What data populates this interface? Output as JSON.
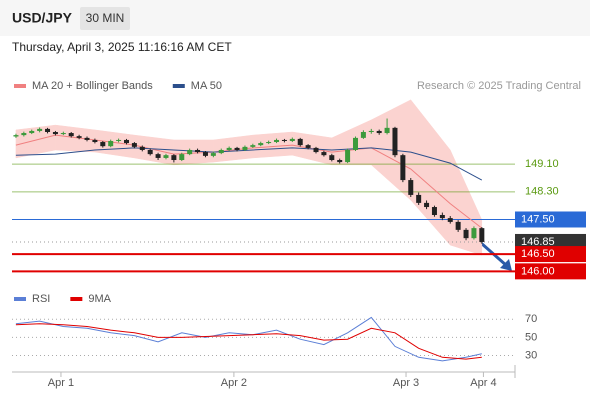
{
  "header": {
    "symbol": "USD/JPY",
    "interval": "30 MIN",
    "timestamp": "Thursday, April 3, 2025 11:16:16 AM CET"
  },
  "chart_data": [
    {
      "type": "candlestick",
      "credit": "Research © 2025 Trading Central",
      "x": [
        0,
        1,
        2,
        3,
        4,
        5,
        6,
        7,
        8,
        9,
        10,
        11,
        12,
        13,
        14,
        15,
        16,
        17,
        18,
        19,
        20,
        21,
        22,
        23,
        24,
        25,
        26,
        27,
        28,
        29,
        30,
        31,
        32,
        33,
        34,
        35,
        36,
        37,
        38,
        39,
        40,
        41,
        42,
        43,
        44,
        45,
        46,
        47,
        48,
        49,
        50,
        51,
        52,
        53,
        54,
        55,
        56,
        57,
        58,
        59
      ],
      "open": [
        149.9,
        149.94,
        150.0,
        150.06,
        150.12,
        150.03,
        149.97,
        150.0,
        149.91,
        149.86,
        149.8,
        149.74,
        149.62,
        149.77,
        149.8,
        149.71,
        149.6,
        149.51,
        149.39,
        149.28,
        149.36,
        149.22,
        149.39,
        149.51,
        149.45,
        149.34,
        149.42,
        149.51,
        149.57,
        149.51,
        149.6,
        149.65,
        149.71,
        149.74,
        149.8,
        149.77,
        149.83,
        149.65,
        149.57,
        149.45,
        149.36,
        149.22,
        149.16,
        149.51,
        149.86,
        150.03,
        150.06,
        150.0,
        150.15,
        149.36,
        148.64,
        148.21,
        147.98,
        147.86,
        147.63,
        147.54,
        147.43,
        147.2,
        146.96,
        147.25
      ],
      "high": [
        149.98,
        150.04,
        150.1,
        150.16,
        150.15,
        150.06,
        150.04,
        150.03,
        149.95,
        149.9,
        149.84,
        149.77,
        149.81,
        149.84,
        149.83,
        149.74,
        149.64,
        149.55,
        149.43,
        149.4,
        149.39,
        149.43,
        149.55,
        149.55,
        149.48,
        149.46,
        149.55,
        149.61,
        149.6,
        149.64,
        149.69,
        149.75,
        149.78,
        149.84,
        149.83,
        149.87,
        149.86,
        149.68,
        149.6,
        149.49,
        149.4,
        149.26,
        149.55,
        149.9,
        150.08,
        150.12,
        150.1,
        150.42,
        150.18,
        149.4,
        148.7,
        148.28,
        148.05,
        147.9,
        147.7,
        147.6,
        147.48,
        147.25,
        147.3,
        147.28
      ],
      "low": [
        149.86,
        149.9,
        149.97,
        150.02,
        149.99,
        149.93,
        149.94,
        149.87,
        149.82,
        149.76,
        149.7,
        149.58,
        149.59,
        149.73,
        149.67,
        149.56,
        149.47,
        149.35,
        149.22,
        149.24,
        149.15,
        149.19,
        149.36,
        149.41,
        149.3,
        149.3,
        149.39,
        149.48,
        149.47,
        149.48,
        149.57,
        149.62,
        149.68,
        149.71,
        149.73,
        149.74,
        149.61,
        149.53,
        149.41,
        149.32,
        149.18,
        149.12,
        149.13,
        149.48,
        149.83,
        149.98,
        149.95,
        149.96,
        149.3,
        148.58,
        148.15,
        147.92,
        147.8,
        147.58,
        147.48,
        147.38,
        147.14,
        146.9,
        146.92,
        146.8
      ],
      "close": [
        149.94,
        150.0,
        150.06,
        150.12,
        150.03,
        149.97,
        150.0,
        149.91,
        149.86,
        149.8,
        149.74,
        149.62,
        149.77,
        149.8,
        149.71,
        149.6,
        149.51,
        149.39,
        149.28,
        149.36,
        149.22,
        149.39,
        149.51,
        149.45,
        149.34,
        149.42,
        149.51,
        149.57,
        149.51,
        149.6,
        149.65,
        149.71,
        149.74,
        149.8,
        149.77,
        149.83,
        149.65,
        149.57,
        149.45,
        149.36,
        149.22,
        149.16,
        149.51,
        149.86,
        150.03,
        150.06,
        150.0,
        150.15,
        149.36,
        148.64,
        148.21,
        147.98,
        147.86,
        147.63,
        147.54,
        147.43,
        147.2,
        146.96,
        147.25,
        146.85
      ],
      "color_up": "#3c9a3c",
      "color_down": "#222222",
      "series": [
        {
          "name": "MA 20 + Bollinger Bands",
          "color": "#f08080",
          "band_color": "#fbd3d0",
          "x": [
            0,
            5,
            10,
            15,
            20,
            25,
            30,
            35,
            40,
            45,
            50,
            55,
            59
          ],
          "values": [
            149.65,
            149.94,
            149.8,
            149.65,
            149.39,
            149.45,
            149.57,
            149.65,
            149.45,
            149.57,
            148.96,
            147.96,
            147.25
          ],
          "band_upper": [
            150.09,
            150.23,
            150.09,
            149.94,
            149.8,
            149.8,
            149.94,
            150.03,
            149.86,
            150.38,
            150.96,
            149.51,
            147.49
          ],
          "band_lower": [
            149.28,
            149.51,
            149.45,
            149.28,
            149.08,
            149.16,
            149.28,
            149.36,
            149.08,
            149.08,
            148.06,
            146.76,
            146.47
          ]
        },
        {
          "name": "MA 50",
          "color": "#2c4f8c",
          "x": [
            0,
            5,
            10,
            15,
            20,
            25,
            30,
            35,
            40,
            45,
            50,
            55,
            59
          ],
          "values": [
            149.36,
            149.39,
            149.51,
            149.57,
            149.51,
            149.45,
            149.51,
            149.57,
            149.51,
            149.57,
            149.45,
            149.13,
            148.64
          ]
        }
      ],
      "levels": [
        {
          "value": 149.1,
          "label": "149.10",
          "color": "#5a9a10",
          "box": false,
          "line": "solid"
        },
        {
          "value": 148.3,
          "label": "148.30",
          "color": "#5a9a10",
          "box": false,
          "line": "solid"
        },
        {
          "value": 147.5,
          "label": "147.50",
          "color": "#2a6ad6",
          "box": true,
          "line": "solid"
        },
        {
          "value": 146.85,
          "color": "#333333",
          "box": true,
          "line": "dotted"
        },
        {
          "value": 146.5,
          "label": "146.50",
          "color": "#e00000",
          "box": true,
          "line": "solid"
        },
        {
          "value": 146,
          "label": "146.00",
          "color": "#e00000",
          "box": true,
          "line": "solid"
        }
      ],
      "xlim": [
        -0.5,
        63.2
      ],
      "ylim": [
        145.75,
        151.1
      ],
      "xticks": [
        {
          "value": 5.7,
          "label": "Apr 1"
        },
        {
          "value": 27.6,
          "label": "Apr 2"
        },
        {
          "value": 49.4,
          "label": "Apr 3"
        },
        {
          "value": 59.2,
          "label": "Apr 4"
        }
      ]
    },
    {
      "type": "line",
      "series": [
        {
          "name": "RSI",
          "color": "#5b7fd6",
          "x": [
            0,
            3,
            6,
            9,
            12,
            15,
            18,
            21,
            24,
            27,
            30,
            33,
            36,
            39,
            42,
            45,
            48,
            51,
            54,
            57,
            59
          ],
          "values": [
            65,
            68,
            62,
            60,
            55,
            52,
            45,
            55,
            50,
            55,
            53,
            58,
            48,
            42,
            55,
            72,
            40,
            28,
            24,
            28,
            32
          ]
        },
        {
          "name": "9MA",
          "color": "#e00000",
          "x": [
            0,
            3,
            6,
            9,
            12,
            15,
            18,
            21,
            24,
            27,
            30,
            33,
            36,
            39,
            42,
            45,
            48,
            51,
            54,
            57,
            59
          ],
          "values": [
            64,
            65,
            64,
            62,
            58,
            55,
            50,
            50,
            51,
            52,
            53,
            54,
            52,
            47,
            48,
            60,
            55,
            38,
            28,
            26,
            28
          ]
        }
      ],
      "xlim": [
        -0.5,
        63.2
      ],
      "ylim": [
        14,
        78
      ],
      "yticks": [
        30,
        50,
        70
      ]
    }
  ]
}
